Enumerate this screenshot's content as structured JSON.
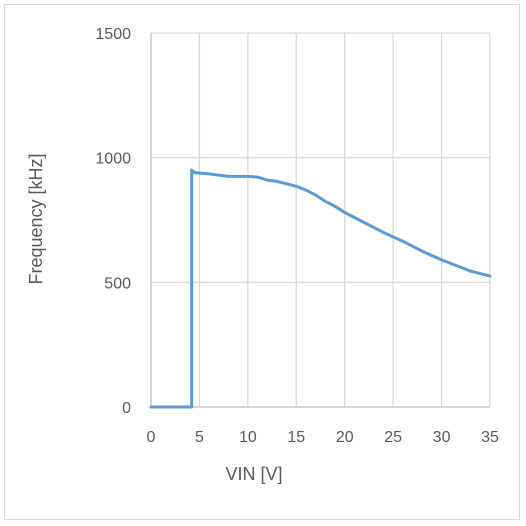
{
  "chart_data": {
    "type": "line",
    "title": "",
    "xlabel": "VIN [V]",
    "ylabel": "Frequency [kHz]",
    "xlim": [
      0,
      35
    ],
    "ylim": [
      0,
      1500
    ],
    "x_ticks": [
      0,
      5,
      10,
      15,
      20,
      25,
      30,
      35
    ],
    "y_ticks": [
      0,
      500,
      1000,
      1500
    ],
    "grid": true,
    "legend": "none",
    "series": [
      {
        "color": "#5b9bd5",
        "x": [
          0,
          4.2,
          4.2,
          4.5,
          6,
          8,
          10,
          11,
          12,
          13,
          14,
          15,
          16,
          17,
          18,
          19,
          20,
          22,
          24,
          26,
          28,
          30,
          32,
          33,
          34,
          35
        ],
        "y": [
          0,
          0,
          950,
          940,
          935,
          925,
          925,
          922,
          910,
          905,
          895,
          885,
          870,
          850,
          825,
          805,
          780,
          740,
          700,
          665,
          625,
          590,
          560,
          545,
          535,
          525
        ]
      }
    ]
  }
}
